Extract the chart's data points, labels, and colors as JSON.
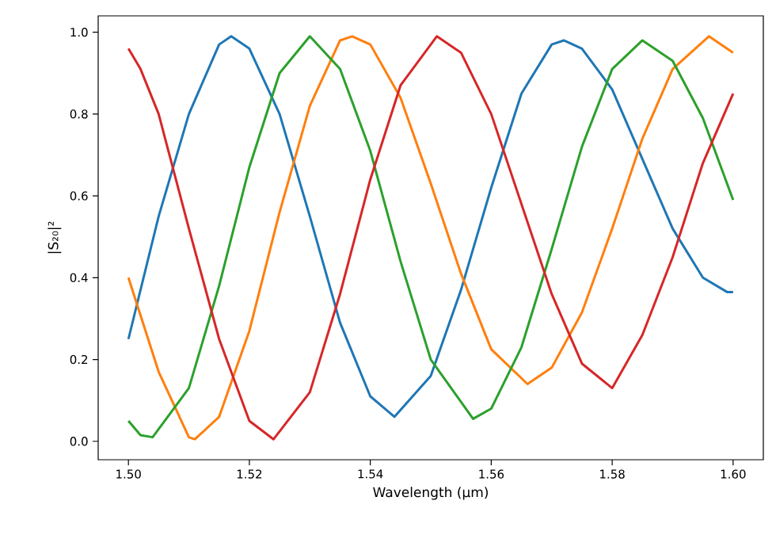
{
  "chart_data": {
    "type": "line",
    "xlabel": "Wavelength (µm)",
    "ylabel": "|S₂₀|²",
    "xlim": [
      1.495,
      1.605
    ],
    "ylim": [
      -0.045,
      1.04
    ],
    "xticks": [
      {
        "value": 1.5,
        "label": "1.50"
      },
      {
        "value": 1.52,
        "label": "1.52"
      },
      {
        "value": 1.54,
        "label": "1.54"
      },
      {
        "value": 1.56,
        "label": "1.56"
      },
      {
        "value": 1.58,
        "label": "1.58"
      },
      {
        "value": 1.6,
        "label": "1.60"
      }
    ],
    "yticks": [
      {
        "value": 0,
        "label": "0.0"
      },
      {
        "value": 0.2,
        "label": "0.2"
      },
      {
        "value": 0.4,
        "label": "0.4"
      },
      {
        "value": 0.6,
        "label": "0.6"
      },
      {
        "value": 0.8,
        "label": "0.8"
      },
      {
        "value": 1.0,
        "label": "1.0"
      }
    ],
    "series": [
      {
        "color": "#1f77b4",
        "x": [
          1.5,
          1.505,
          1.51,
          1.515,
          1.517,
          1.52,
          1.525,
          1.53,
          1.535,
          1.54,
          1.544,
          1.55,
          1.555,
          1.56,
          1.565,
          1.57,
          1.572,
          1.575,
          1.58,
          1.585,
          1.59,
          1.595,
          1.599,
          1.6
        ],
        "values": [
          0.25,
          0.55,
          0.8,
          0.97,
          0.99,
          0.96,
          0.8,
          0.55,
          0.29,
          0.11,
          0.06,
          0.16,
          0.37,
          0.62,
          0.85,
          0.97,
          0.98,
          0.96,
          0.86,
          0.69,
          0.52,
          0.4,
          0.365,
          0.365
        ]
      },
      {
        "color": "#ff7f0e",
        "x": [
          1.5,
          1.505,
          1.51,
          1.511,
          1.515,
          1.52,
          1.525,
          1.53,
          1.535,
          1.537,
          1.54,
          1.545,
          1.55,
          1.555,
          1.56,
          1.566,
          1.57,
          1.575,
          1.58,
          1.585,
          1.59,
          1.596,
          1.6
        ],
        "values": [
          0.4,
          0.17,
          0.01,
          0.005,
          0.06,
          0.27,
          0.56,
          0.82,
          0.98,
          0.99,
          0.97,
          0.84,
          0.63,
          0.41,
          0.225,
          0.14,
          0.18,
          0.315,
          0.52,
          0.74,
          0.91,
          0.99,
          0.95
        ]
      },
      {
        "color": "#2ca02c",
        "x": [
          1.5,
          1.502,
          1.504,
          1.51,
          1.515,
          1.52,
          1.525,
          1.53,
          1.535,
          1.54,
          1.545,
          1.55,
          1.557,
          1.56,
          1.565,
          1.57,
          1.575,
          1.58,
          1.585,
          1.59,
          1.595,
          1.6
        ],
        "values": [
          0.05,
          0.015,
          0.01,
          0.13,
          0.38,
          0.67,
          0.9,
          0.99,
          0.91,
          0.71,
          0.44,
          0.2,
          0.055,
          0.08,
          0.23,
          0.47,
          0.72,
          0.91,
          0.98,
          0.93,
          0.79,
          0.59
        ]
      },
      {
        "color": "#d62728",
        "x": [
          1.5,
          1.502,
          1.505,
          1.51,
          1.515,
          1.52,
          1.524,
          1.53,
          1.535,
          1.54,
          1.545,
          1.551,
          1.555,
          1.56,
          1.565,
          1.57,
          1.575,
          1.58,
          1.585,
          1.59,
          1.595,
          1.6
        ],
        "values": [
          0.96,
          0.91,
          0.8,
          0.52,
          0.25,
          0.05,
          0.005,
          0.12,
          0.36,
          0.64,
          0.87,
          0.99,
          0.95,
          0.8,
          0.58,
          0.36,
          0.19,
          0.13,
          0.26,
          0.45,
          0.68,
          0.85
        ]
      }
    ]
  }
}
